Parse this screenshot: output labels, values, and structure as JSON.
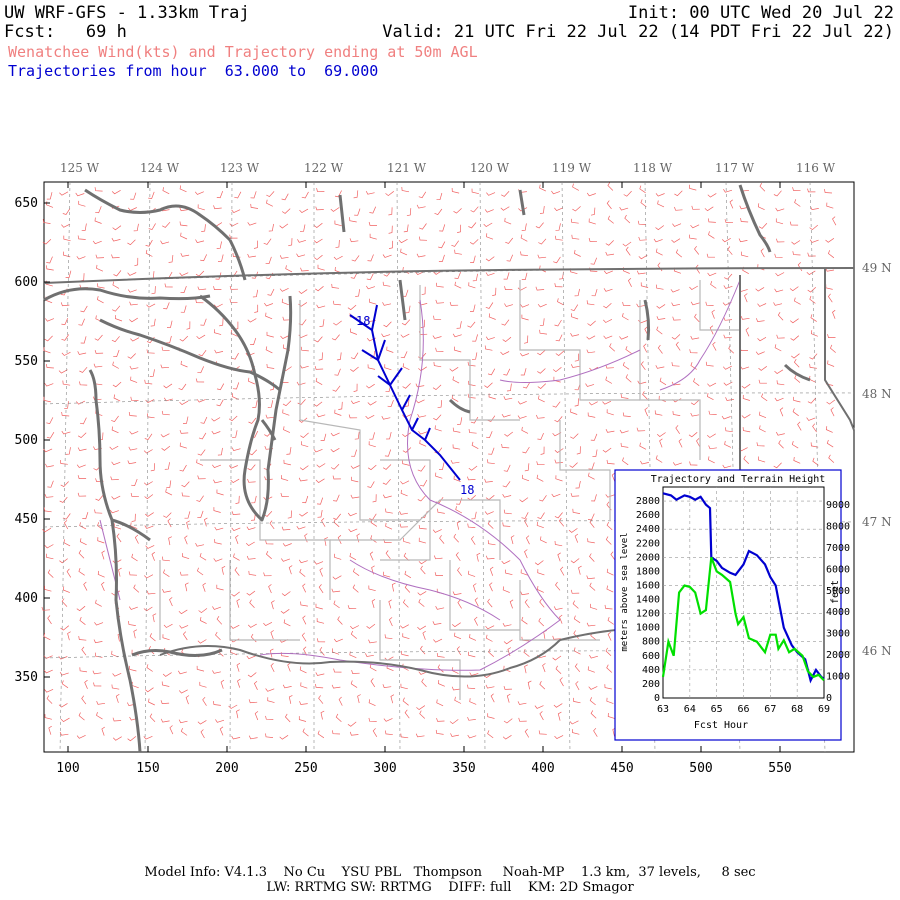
{
  "header": {
    "model_title": "UW WRF-GFS - 1.33km Traj",
    "init": "Init: 00 UTC Wed 20 Jul 22",
    "fcst": "Fcst:   69 h",
    "valid": "Valid: 21 UTC Fri 22 Jul 22 (14 PDT Fri 22 Jul 22)",
    "product": "Wenatchee Wind(kts) and Trajectory ending at 50m AGL",
    "traj_range": "Trajectories from hour  63.000 to  69.000"
  },
  "colors": {
    "wind_barbs": "#f06060",
    "coastline": "#707070",
    "borders_state": "#707070",
    "borders_county": "#b8b8b8",
    "rivers": "#b070c0",
    "trajectory": "#0000d0",
    "inset_terrain": "#00e000",
    "inset_height": "#0000d0"
  },
  "map": {
    "lon_labels": [
      "125 W",
      "124 W",
      "123 W",
      "122 W",
      "121 W",
      "120 W",
      "119 W",
      "118 W",
      "117 W",
      "116 W"
    ],
    "lat_labels": [
      "49 N",
      "48 N",
      "47 N",
      "46 N"
    ],
    "x_ticks": [
      "100",
      "150",
      "200",
      "250",
      "300",
      "350",
      "400",
      "450",
      "500",
      "550"
    ],
    "y_ticks": [
      "650",
      "600",
      "550",
      "500",
      "450",
      "400",
      "350"
    ],
    "traj_start_label": "18",
    "traj_end_label": "18"
  },
  "inset": {
    "title": "Trajectory and Terrain Height",
    "y_left_label": "meters above sea level",
    "y_right_label": "feet",
    "x_label": "Fcst Hour",
    "y_left_ticks": [
      "0",
      "200",
      "400",
      "600",
      "800",
      "1000",
      "1200",
      "1400",
      "1600",
      "1800",
      "2000",
      "2200",
      "2400",
      "2600",
      "2800"
    ],
    "y_right_ticks": [
      "0",
      "1000",
      "2000",
      "3000",
      "4000",
      "5000",
      "6000",
      "7000",
      "8000",
      "9000"
    ],
    "x_ticks": [
      "63",
      "64",
      "65",
      "66",
      "67",
      "68",
      "69"
    ]
  },
  "chart_data": {
    "type": "line",
    "title": "Trajectory and Terrain Height",
    "xlabel": "Fcst Hour",
    "ylabel": "meters above sea level",
    "xlim": [
      63,
      69
    ],
    "ylim": [
      0,
      3000
    ],
    "series": [
      {
        "color": "#0000d0",
        "points": [
          [
            63.0,
            2910
          ],
          [
            63.3,
            2880
          ],
          [
            63.5,
            2820
          ],
          [
            63.8,
            2880
          ],
          [
            64.0,
            2860
          ],
          [
            64.2,
            2820
          ],
          [
            64.4,
            2860
          ],
          [
            64.6,
            2750
          ],
          [
            64.75,
            2700
          ],
          [
            64.8,
            2000
          ],
          [
            65.0,
            1950
          ],
          [
            65.2,
            1850
          ],
          [
            65.5,
            1780
          ],
          [
            65.7,
            1750
          ],
          [
            66.0,
            1900
          ],
          [
            66.2,
            2090
          ],
          [
            66.5,
            2030
          ],
          [
            66.8,
            1900
          ],
          [
            67.0,
            1720
          ],
          [
            67.2,
            1600
          ],
          [
            67.5,
            1000
          ],
          [
            67.8,
            750
          ],
          [
            68.0,
            650
          ],
          [
            68.3,
            550
          ],
          [
            68.5,
            250
          ],
          [
            68.7,
            400
          ],
          [
            68.9,
            300
          ],
          [
            69.0,
            270
          ]
        ]
      },
      {
        "color": "#00e000",
        "points": [
          [
            63.0,
            300
          ],
          [
            63.2,
            800
          ],
          [
            63.4,
            600
          ],
          [
            63.6,
            1500
          ],
          [
            63.8,
            1600
          ],
          [
            64.0,
            1580
          ],
          [
            64.2,
            1500
          ],
          [
            64.4,
            1200
          ],
          [
            64.6,
            1250
          ],
          [
            64.8,
            2000
          ],
          [
            65.0,
            1800
          ],
          [
            65.2,
            1750
          ],
          [
            65.5,
            1650
          ],
          [
            65.7,
            1200
          ],
          [
            65.8,
            1050
          ],
          [
            66.0,
            1150
          ],
          [
            66.2,
            850
          ],
          [
            66.5,
            800
          ],
          [
            66.8,
            650
          ],
          [
            67.0,
            900
          ],
          [
            67.2,
            900
          ],
          [
            67.3,
            700
          ],
          [
            67.5,
            820
          ],
          [
            67.7,
            650
          ],
          [
            67.9,
            700
          ],
          [
            68.2,
            600
          ],
          [
            68.4,
            380
          ],
          [
            68.6,
            300
          ],
          [
            68.8,
            330
          ],
          [
            69.0,
            250
          ]
        ]
      }
    ]
  },
  "footer": {
    "line1": "Model Info: V4.1.3    No Cu    YSU PBL   Thompson     Noah-MP    1.3 km,  37 levels,     8 sec",
    "line2": "LW: RRTMG SW: RRTMG    DIFF: full    KM: 2D Smagor"
  }
}
